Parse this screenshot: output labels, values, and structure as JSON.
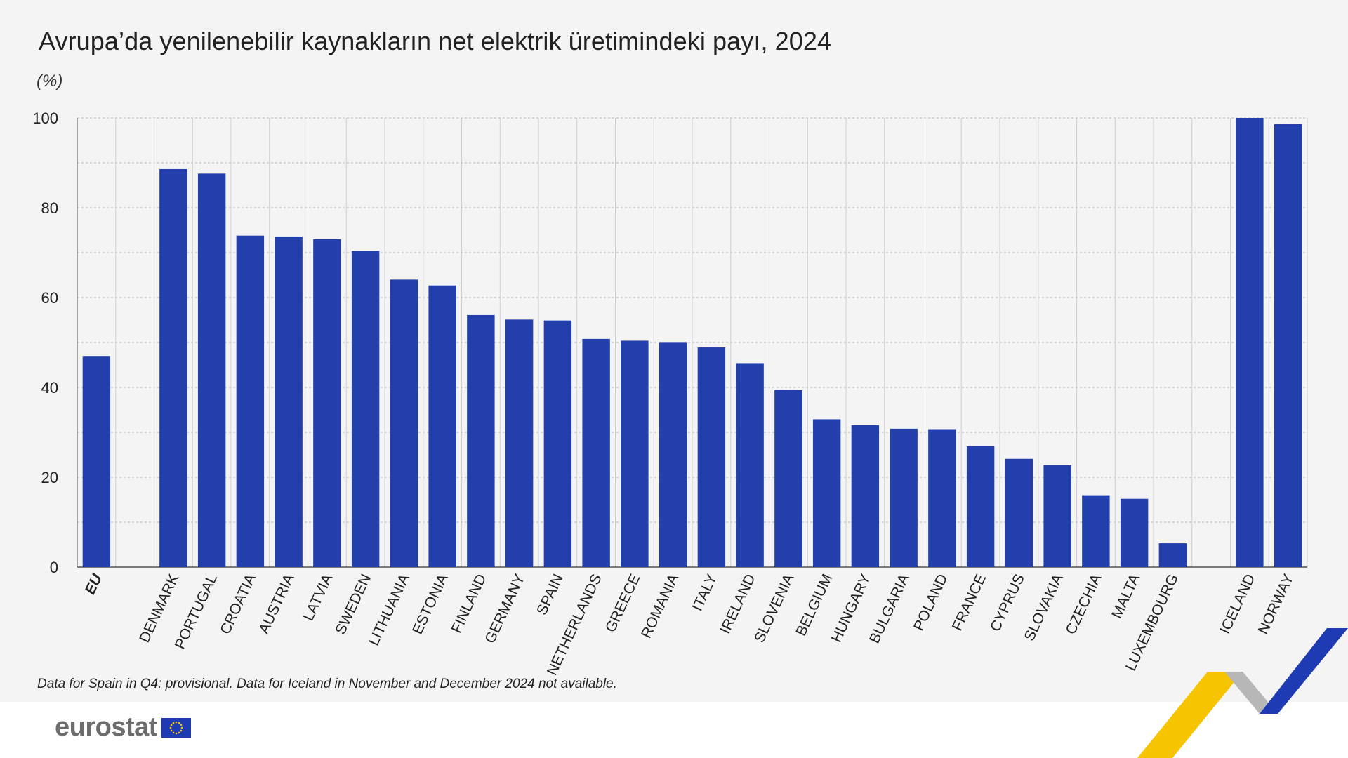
{
  "header": {
    "title": "Avrupa’da yenilenebilir kaynakların net elektrik üretimindeki payı, 2024",
    "unit": "(%)"
  },
  "footer": {
    "note": "Data for Spain in Q4: provisional. Data for Iceland in November and December 2024 not available.",
    "brand": "eurostat"
  },
  "colors": {
    "bar": "#233fab",
    "grid": "#b9b9b9",
    "panel": "#f4f4f4",
    "ribbon_yellow": "#f6c400",
    "ribbon_blue": "#1f3bb3",
    "ribbon_grey": "#b7b7b7"
  },
  "icons": [
    "eu-flag-icon",
    "ribbon-logo-icon"
  ],
  "chart_data": {
    "type": "bar",
    "title": "Avrupa’da yenilenebilir kaynakların net elektrik üretimindeki payı, 2024",
    "ylabel": "(%)",
    "ylim": [
      0,
      100
    ],
    "yticks": [
      0,
      20,
      40,
      60,
      80,
      100
    ],
    "grid": true,
    "categories": [
      "EU",
      "",
      "DENMARK",
      "PORTUGAL",
      "CROATIA",
      "AUSTRIA",
      "LATVIA",
      "SWEDEN",
      "LITHUANIA",
      "ESTONIA",
      "FINLAND",
      "GERMANY",
      "SPAIN",
      "NETHERLANDS",
      "GREECE",
      "ROMANIA",
      "ITALY",
      "IRELAND",
      "SLOVENIA",
      "BELGIUM",
      "HUNGARY",
      "BULGARIA",
      "POLAND",
      "FRANCE",
      "CYPRUS",
      "SLOVAKIA",
      "CZECHIA",
      "MALTA",
      "LUXEMBOURG",
      "",
      "ICELAND",
      "NORWAY"
    ],
    "values": [
      47.0,
      null,
      88.6,
      87.6,
      73.8,
      73.6,
      73.0,
      70.4,
      64.0,
      62.7,
      56.1,
      55.1,
      54.9,
      50.8,
      50.4,
      50.1,
      48.9,
      45.4,
      39.4,
      32.9,
      31.6,
      30.8,
      30.7,
      26.9,
      24.1,
      22.7,
      16.0,
      15.2,
      5.3,
      null,
      100.0,
      98.6
    ],
    "bold_categories": [
      "EU"
    ]
  }
}
